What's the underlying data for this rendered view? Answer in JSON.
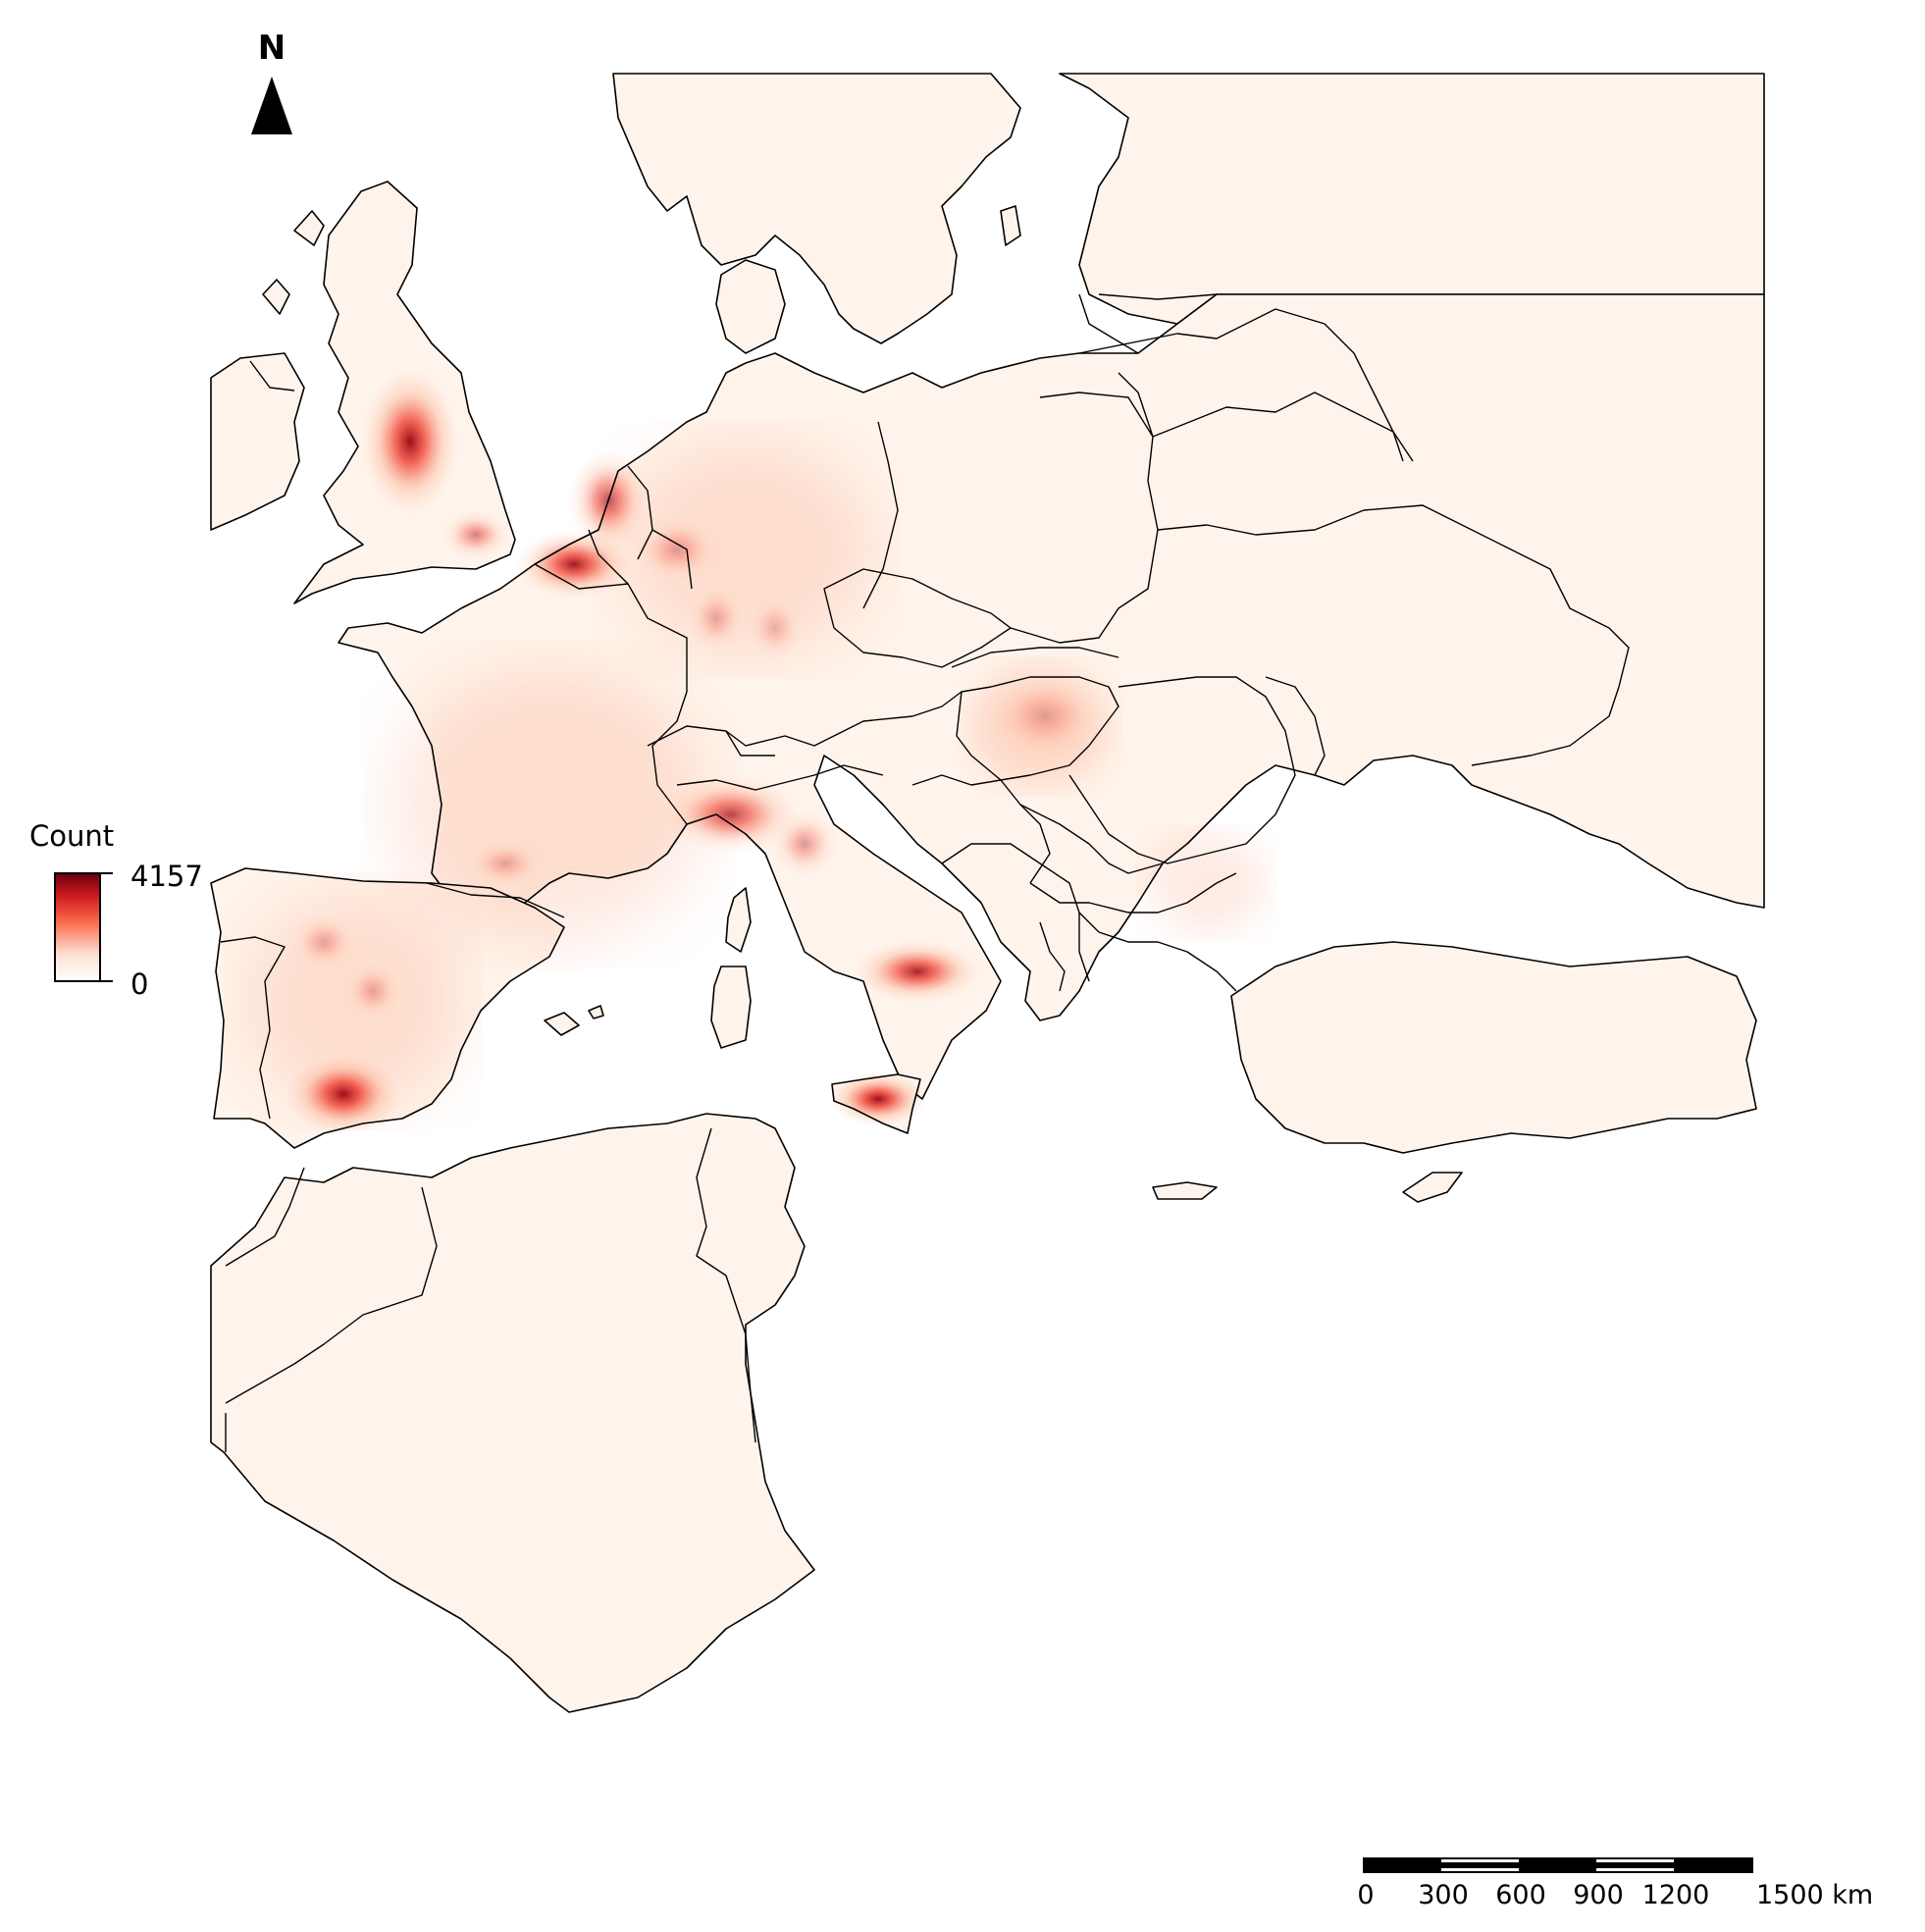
{
  "north_arrow": {
    "label": "N"
  },
  "legend": {
    "title": "Count",
    "max_label": "4157",
    "min_label": "0",
    "gradient_colors": [
      "#ffffff",
      "#fde0d2",
      "#fb6a4a",
      "#cb181d",
      "#67000d"
    ]
  },
  "scale_bar": {
    "tick_labels": [
      "0",
      "300",
      "600",
      "900",
      "1200",
      "1500 km"
    ],
    "unit": "km"
  },
  "map": {
    "base_fill_color": "#fff4ec",
    "heat_palette": {
      "low": "#fcbba1",
      "mid": "#ef3b2c",
      "high": "#99000d"
    },
    "hotspots": [
      {
        "region": "Northern England",
        "intensity": 0.95
      },
      {
        "region": "Belgium",
        "intensity": 0.85
      },
      {
        "region": "Netherlands",
        "intensity": 0.6
      },
      {
        "region": "Sicily",
        "intensity": 0.9
      },
      {
        "region": "Andalusia",
        "intensity": 0.85
      },
      {
        "region": "Southern Italy (Apulia)",
        "intensity": 0.75
      },
      {
        "region": "Northern Italy",
        "intensity": 0.6
      },
      {
        "region": "Western Germany",
        "intensity": 0.3
      },
      {
        "region": "Hungary",
        "intensity": 0.25
      }
    ]
  }
}
